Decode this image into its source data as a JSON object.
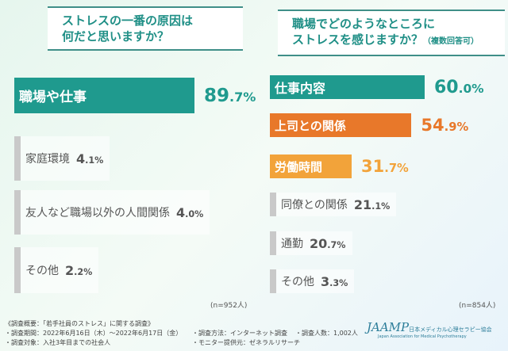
{
  "questions": {
    "left_line1": "ストレスの一番の原因は",
    "left_line2": "何だと思いますか？",
    "right_line1": "職場でどのようなところに",
    "right_line2": "ストレスを感じますか？",
    "right_note": "（複数回答可）"
  },
  "chart_data": [
    {
      "type": "bar",
      "orientation": "horizontal",
      "categories": [
        "職場や仕事",
        "家庭環境",
        "友人など職場以外の人間関係",
        "その他"
      ],
      "values": [
        89.7,
        4.1,
        4.0,
        2.2
      ],
      "unit": "%",
      "n_label": "(n=952人)",
      "colors": [
        "#1f9a8e",
        "#c9c9c9",
        "#c9c9c9",
        "#c9c9c9"
      ]
    },
    {
      "type": "bar",
      "orientation": "horizontal",
      "categories": [
        "仕事内容",
        "上司との関係",
        "労働時間",
        "同僚との関係",
        "通勤",
        "その他"
      ],
      "values": [
        60.0,
        54.9,
        31.7,
        21.1,
        20.7,
        3.3
      ],
      "unit": "%",
      "n_label": "(n=854人)",
      "colors": [
        "#1f9a8e",
        "#e8782a",
        "#f2a33a",
        "#c9c9c9",
        "#c9c9c9",
        "#c9c9c9"
      ]
    }
  ],
  "footer": {
    "title": "《調査概要：「若手社員のストレス」に関する調査》",
    "period": "・調査期間：2022年6月16日（木）〜2022年6月17日（金）",
    "method": "・調査方法：インターネット調査",
    "count": "・調査人数：1,002人",
    "target": "・調査対象：入社3年目までの社会人",
    "monitor": "・モニター提供元：ゼネラルリサーチ"
  },
  "logo": {
    "text": "JAAMP日本メディカル心理セラピー協会",
    "sub": "Japan Association for Medical Psychotherapy"
  }
}
